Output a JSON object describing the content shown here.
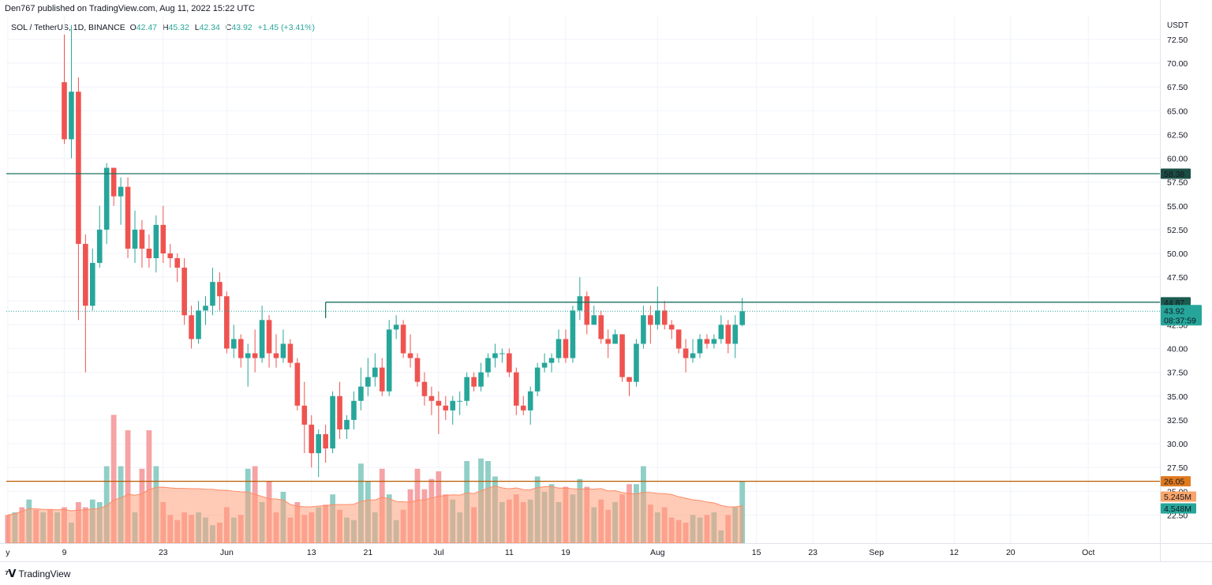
{
  "header": {
    "published": "Den767 published on TradingView.com, Aug 11, 2022 15:22 UTC"
  },
  "legend": {
    "symbol": "SOL / TetherUS, 1D, BINANCE",
    "open_label": "O",
    "open": "42.47",
    "high_label": "H",
    "high": "45.32",
    "low_label": "L",
    "low": "42.34",
    "close_label": "C",
    "close": "43.92",
    "change": "+1.45 (+3.41%)"
  },
  "footer": {
    "brand": "TradingView",
    "logo_icon": "tradingview-logo-icon"
  },
  "colors": {
    "up": "#26a69a",
    "down": "#ef5350",
    "vol_up": "#8fcfc6",
    "vol_down": "#f5a3a5",
    "resistance_line": "#1d7363",
    "support_line": "#b85a00",
    "volume_ma": "#ffa07a"
  },
  "chart_data": {
    "type": "candlestick",
    "currency": "USDT",
    "y_ticks": [
      "72.50",
      "70.00",
      "67.50",
      "65.00",
      "62.50",
      "60.00",
      "57.50",
      "55.00",
      "52.50",
      "50.00",
      "47.50",
      "45.00",
      "42.50",
      "40.00",
      "37.50",
      "35.00",
      "32.50",
      "30.00",
      "27.50",
      "25.00",
      "22.50"
    ],
    "x_ticks": [
      {
        "label": "y",
        "day": -8
      },
      {
        "label": "9",
        "day": 0
      },
      {
        "label": "23",
        "day": 14
      },
      {
        "label": "Jun",
        "day": 23
      },
      {
        "label": "13",
        "day": 35
      },
      {
        "label": "21",
        "day": 43
      },
      {
        "label": "Jul",
        "day": 53
      },
      {
        "label": "11",
        "day": 63
      },
      {
        "label": "19",
        "day": 71
      },
      {
        "label": "Aug",
        "day": 84
      },
      {
        "label": "15",
        "day": 98
      },
      {
        "label": "23",
        "day": 106
      },
      {
        "label": "Sep",
        "day": 115
      },
      {
        "label": "12",
        "day": 126
      },
      {
        "label": "20",
        "day": 134
      },
      {
        "label": "Oct",
        "day": 145
      }
    ],
    "ylim": [
      20.5,
      73.5
    ],
    "horizontal_lines": [
      {
        "value": 58.38,
        "label": "58.38"
      },
      {
        "value": 44.87,
        "label": "44.87"
      },
      {
        "value": 26.05,
        "label": "26.05"
      }
    ],
    "price_tags": {
      "last_price": "43.92",
      "countdown": "08:37:59",
      "volume_ma": "5.245M",
      "volume": "4.548M"
    },
    "volume_ylim": [
      0,
      60
    ],
    "candles": [
      [
        0,
        68.0,
        62.0,
        73.0,
        61.5
      ],
      [
        1,
        62.0,
        67.0,
        74.0,
        60.0
      ],
      [
        2,
        67.0,
        51.0,
        68.5,
        43.0
      ],
      [
        3,
        51.0,
        44.5,
        52.0,
        37.5
      ],
      [
        4,
        44.5,
        49.0,
        50.5,
        44.0
      ],
      [
        5,
        49.0,
        52.5,
        55.0,
        48.5
      ],
      [
        6,
        52.5,
        59.0,
        59.5,
        51.0
      ],
      [
        7,
        59.0,
        56.0,
        59.0,
        55.0
      ],
      [
        8,
        56.0,
        57.0,
        58.0,
        53.0
      ],
      [
        9,
        57.0,
        50.5,
        58.0,
        49.5
      ],
      [
        10,
        50.5,
        52.5,
        54.5,
        49.0
      ],
      [
        11,
        52.5,
        50.5,
        53.5,
        48.5
      ],
      [
        12,
        50.5,
        49.5,
        52.0,
        48.5
      ],
      [
        13,
        49.5,
        53.0,
        54.0,
        48.0
      ],
      [
        14,
        53.0,
        50.0,
        55.0,
        49.0
      ],
      [
        15,
        50.0,
        49.5,
        51.0,
        48.5
      ],
      [
        16,
        49.5,
        48.5,
        50.0,
        47.0
      ],
      [
        17,
        48.5,
        43.5,
        49.5,
        42.5
      ],
      [
        18,
        43.5,
        41.0,
        44.5,
        40.0
      ],
      [
        19,
        41.0,
        44.0,
        45.0,
        40.5
      ],
      [
        20,
        44.0,
        44.5,
        45.5,
        42.5
      ],
      [
        21,
        44.5,
        47.0,
        48.5,
        43.5
      ],
      [
        22,
        47.0,
        45.5,
        48.0,
        44.0
      ],
      [
        23,
        45.5,
        40.0,
        46.0,
        39.5
      ],
      [
        24,
        40.0,
        41.0,
        42.5,
        39.0
      ],
      [
        25,
        41.0,
        39.0,
        41.5,
        38.0
      ],
      [
        26,
        39.0,
        39.5,
        40.5,
        36.0
      ],
      [
        27,
        39.5,
        39.0,
        42.0,
        37.5
      ],
      [
        28,
        39.0,
        43.0,
        44.5,
        38.5
      ],
      [
        29,
        43.0,
        39.5,
        43.5,
        38.0
      ],
      [
        30,
        39.5,
        39.0,
        41.5,
        38.0
      ],
      [
        31,
        39.0,
        40.5,
        42.0,
        38.5
      ],
      [
        32,
        40.5,
        38.5,
        41.0,
        38.0
      ],
      [
        33,
        38.5,
        34.0,
        39.0,
        33.5
      ],
      [
        34,
        34.0,
        32.0,
        36.5,
        29.0
      ],
      [
        35,
        32.0,
        29.0,
        33.0,
        27.5
      ],
      [
        36,
        29.0,
        31.0,
        31.5,
        26.5
      ],
      [
        37,
        31.0,
        29.5,
        32.0,
        28.0
      ],
      [
        38,
        29.5,
        35.0,
        35.5,
        29.0
      ],
      [
        39,
        35.0,
        31.5,
        36.5,
        30.5
      ],
      [
        40,
        31.5,
        32.5,
        33.0,
        30.5
      ],
      [
        41,
        32.5,
        34.5,
        35.5,
        31.5
      ],
      [
        42,
        34.5,
        36.0,
        38.0,
        33.5
      ],
      [
        43,
        36.0,
        37.0,
        39.0,
        35.0
      ],
      [
        44,
        37.0,
        38.0,
        39.5,
        36.0
      ],
      [
        45,
        38.0,
        35.5,
        39.0,
        35.0
      ],
      [
        46,
        35.5,
        42.0,
        43.0,
        35.0
      ],
      [
        47,
        42.0,
        42.5,
        43.5,
        41.0
      ],
      [
        48,
        42.5,
        39.5,
        43.0,
        39.0
      ],
      [
        49,
        39.5,
        39.0,
        41.5,
        38.0
      ],
      [
        50,
        39.0,
        36.5,
        39.5,
        36.0
      ],
      [
        51,
        36.5,
        35.0,
        37.5,
        34.0
      ],
      [
        52,
        35.0,
        34.5,
        36.0,
        33.0
      ],
      [
        53,
        34.5,
        34.0,
        35.5,
        31.0
      ],
      [
        54,
        34.0,
        33.5,
        35.0,
        32.5
      ],
      [
        55,
        33.5,
        34.5,
        35.0,
        32.0
      ],
      [
        56,
        34.5,
        34.5,
        35.5,
        33.0
      ],
      [
        57,
        34.5,
        37.0,
        37.5,
        34.0
      ],
      [
        58,
        37.0,
        36.0,
        37.5,
        35.5
      ],
      [
        59,
        36.0,
        37.5,
        38.5,
        35.5
      ],
      [
        60,
        37.5,
        39.0,
        39.5,
        37.0
      ],
      [
        61,
        39.0,
        39.5,
        40.5,
        38.0
      ],
      [
        62,
        39.5,
        39.5,
        40.0,
        38.5
      ],
      [
        63,
        39.5,
        37.5,
        40.0,
        37.0
      ],
      [
        64,
        37.5,
        34.0,
        38.0,
        33.0
      ],
      [
        65,
        34.0,
        33.5,
        35.0,
        33.0
      ],
      [
        66,
        33.5,
        35.5,
        36.0,
        32.0
      ],
      [
        67,
        35.5,
        38.0,
        38.5,
        35.0
      ],
      [
        68,
        38.0,
        38.5,
        39.5,
        37.5
      ],
      [
        69,
        38.5,
        39.0,
        39.5,
        37.5
      ],
      [
        70,
        39.0,
        41.0,
        42.0,
        38.5
      ],
      [
        71,
        41.0,
        39.0,
        42.0,
        38.5
      ],
      [
        72,
        39.0,
        44.0,
        44.5,
        38.5
      ],
      [
        73,
        44.0,
        45.5,
        47.5,
        43.0
      ],
      [
        74,
        45.5,
        42.5,
        46.0,
        41.5
      ],
      [
        75,
        42.5,
        43.5,
        44.5,
        42.5
      ],
      [
        76,
        43.5,
        41.0,
        44.0,
        40.5
      ],
      [
        77,
        41.0,
        40.5,
        42.0,
        39.0
      ],
      [
        78,
        40.5,
        41.5,
        42.0,
        40.5
      ],
      [
        79,
        41.5,
        37.0,
        41.5,
        36.5
      ],
      [
        80,
        37.0,
        36.5,
        37.0,
        35.0
      ],
      [
        81,
        36.5,
        40.5,
        41.0,
        36.0
      ],
      [
        82,
        40.5,
        43.5,
        44.5,
        40.0
      ],
      [
        83,
        43.5,
        42.5,
        44.5,
        40.5
      ],
      [
        84,
        42.5,
        44.0,
        46.5,
        42.0
      ],
      [
        85,
        44.0,
        42.5,
        45.0,
        42.0
      ],
      [
        86,
        42.5,
        42.0,
        43.0,
        41.0
      ],
      [
        87,
        42.0,
        40.0,
        42.0,
        39.5
      ],
      [
        88,
        40.0,
        39.0,
        41.0,
        37.5
      ],
      [
        89,
        39.0,
        39.5,
        41.0,
        38.5
      ],
      [
        90,
        39.5,
        41.0,
        41.5,
        39.0
      ],
      [
        91,
        41.0,
        40.5,
        41.5,
        40.0
      ],
      [
        92,
        40.5,
        41.0,
        41.5,
        40.0
      ],
      [
        93,
        41.0,
        42.5,
        43.5,
        40.5
      ],
      [
        94,
        42.5,
        40.5,
        43.0,
        39.5
      ],
      [
        95,
        40.5,
        42.5,
        43.5,
        39.0
      ],
      [
        96,
        42.47,
        43.92,
        45.32,
        42.34
      ]
    ],
    "volumes": [
      14,
      8,
      16,
      14,
      17,
      16,
      30,
      50,
      30,
      44,
      12,
      29,
      44,
      30,
      16,
      11,
      9,
      12,
      11,
      12,
      10,
      7,
      8,
      14,
      10,
      11,
      29,
      30,
      16,
      24,
      12,
      20,
      10,
      16,
      11,
      12,
      14,
      15,
      19,
      13,
      10,
      9,
      31,
      24,
      12,
      29,
      19,
      9,
      13,
      21,
      29,
      21,
      25,
      28,
      19,
      17,
      12,
      32,
      14,
      33,
      32,
      26,
      16,
      17,
      19,
      16,
      17,
      26,
      20,
      23,
      16,
      22,
      19,
      25,
      22,
      14,
      17,
      13,
      16,
      19,
      23,
      23,
      30,
      15,
      12,
      14,
      10,
      9,
      8,
      11,
      10,
      11,
      12,
      5,
      11,
      14,
      24
    ]
  }
}
